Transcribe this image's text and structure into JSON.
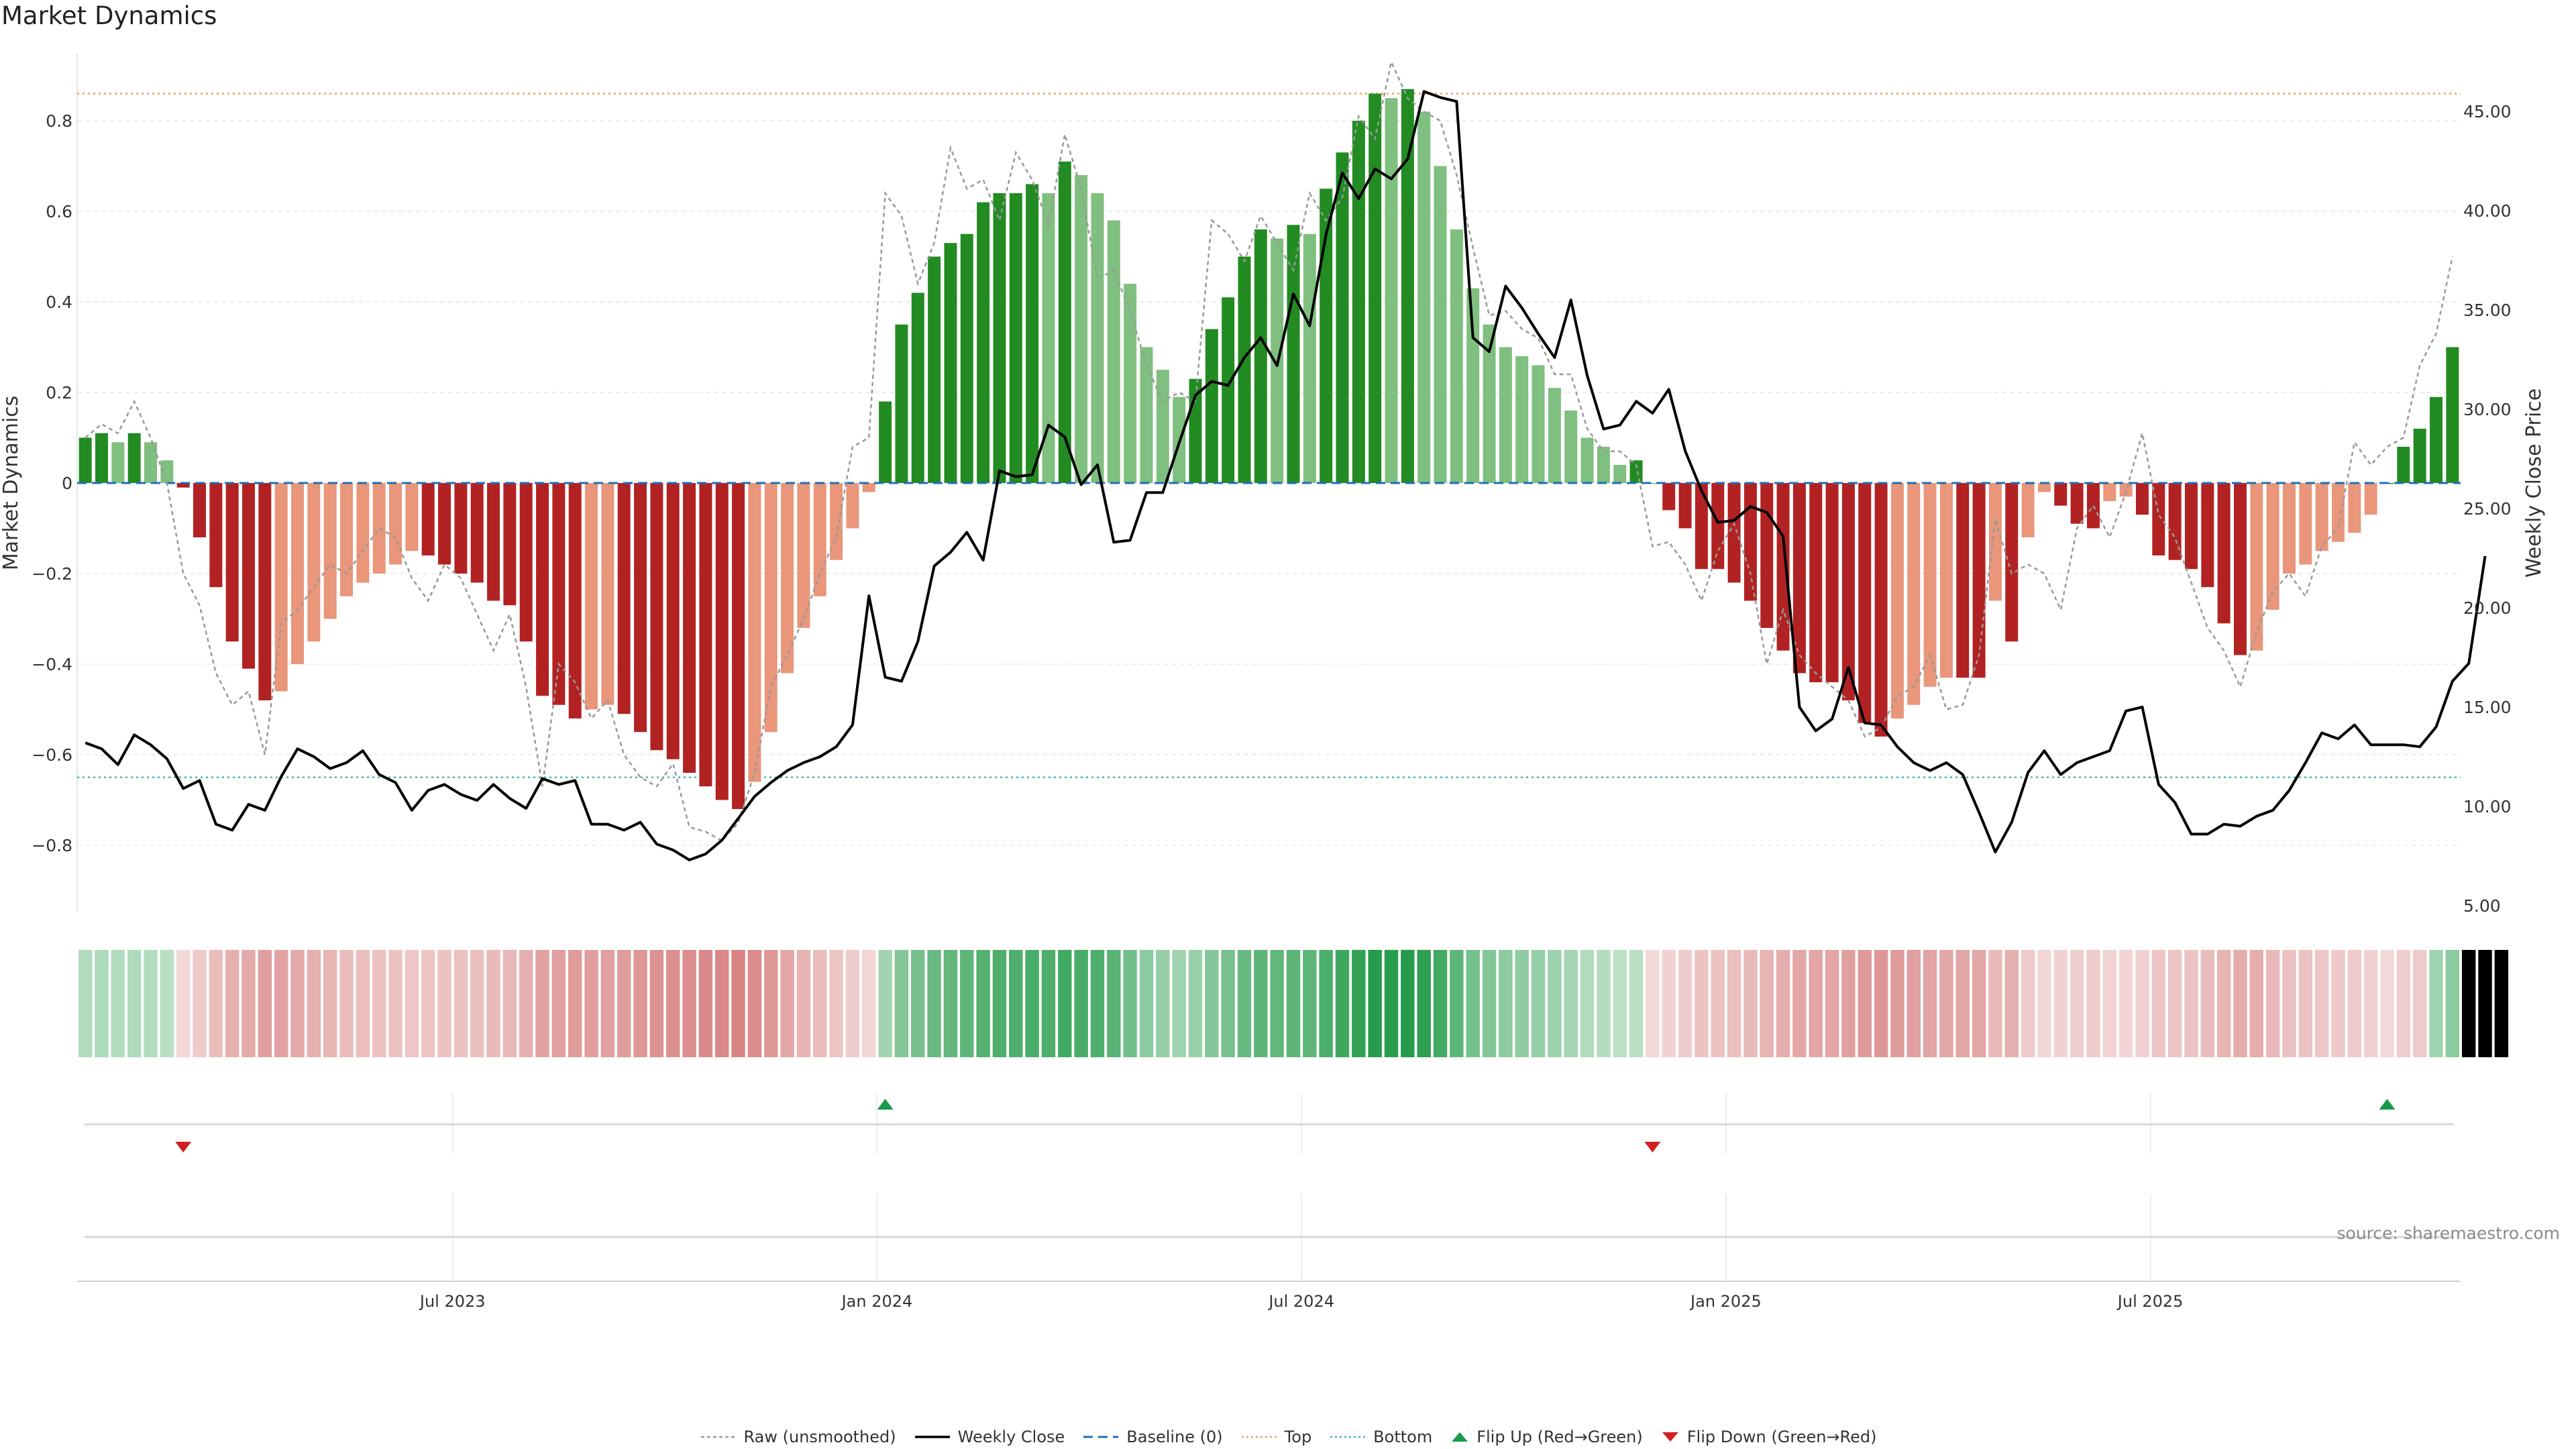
{
  "title": "Market Dynamics",
  "source": "source: sharemaestro.com",
  "chart_data": {
    "type": "bar",
    "title": "Market Dynamics",
    "ylabel": "Market Dynamics",
    "y2label": "Weekly Close Price",
    "ylim": [
      -0.95,
      0.95
    ],
    "y2lim": [
      5.0,
      47.0
    ],
    "left_ticks": [
      "0.8",
      "0.6",
      "0.4",
      "0.2",
      "0",
      "−0.2",
      "−0.4",
      "−0.6",
      "−0.8"
    ],
    "right_ticks": [
      "45.00",
      "40.00",
      "35.00",
      "30.00",
      "25.00",
      "20.00",
      "15.00",
      "10.00",
      "5.00"
    ],
    "x_ticks": [
      "Jul 2023",
      "Jan 2024",
      "Jul 2024",
      "Jan 2025",
      "Jul 2025"
    ],
    "top_level": 0.86,
    "bottom_level": -0.65,
    "colors": {
      "green_strong": "#228b22",
      "green_light": "#7fbf7f",
      "red_strong": "#b22222",
      "red_light": "#e9967a",
      "top_line": "#f0a05a",
      "bottom_line": "#40b0d0",
      "baseline": "#1f6fb4",
      "raw_line": "#999999",
      "close_line": "#000000"
    },
    "dynamics": [
      0.1,
      0.11,
      0.09,
      0.11,
      0.09,
      0.05,
      -0.01,
      -0.12,
      -0.23,
      -0.35,
      -0.41,
      -0.48,
      -0.46,
      -0.4,
      -0.35,
      -0.3,
      -0.25,
      -0.22,
      -0.2,
      -0.18,
      -0.15,
      -0.16,
      -0.18,
      -0.2,
      -0.22,
      -0.26,
      -0.27,
      -0.35,
      -0.47,
      -0.49,
      -0.52,
      -0.5,
      -0.49,
      -0.51,
      -0.55,
      -0.59,
      -0.61,
      -0.64,
      -0.67,
      -0.7,
      -0.72,
      -0.66,
      -0.55,
      -0.42,
      -0.32,
      -0.25,
      -0.17,
      -0.1,
      -0.02,
      0.18,
      0.35,
      0.42,
      0.5,
      0.53,
      0.55,
      0.62,
      0.64,
      0.64,
      0.66,
      0.64,
      0.71,
      0.68,
      0.64,
      0.58,
      0.44,
      0.3,
      0.25,
      0.19,
      0.23,
      0.34,
      0.41,
      0.5,
      0.56,
      0.54,
      0.57,
      0.55,
      0.65,
      0.73,
      0.8,
      0.86,
      0.85,
      0.87,
      0.82,
      0.7,
      0.56,
      0.43,
      0.35,
      0.3,
      0.28,
      0.26,
      0.21,
      0.16,
      0.1,
      0.08,
      0.04,
      0.05,
      0.0,
      -0.06,
      -0.1,
      -0.19,
      -0.19,
      -0.22,
      -0.26,
      -0.32,
      -0.37,
      -0.42,
      -0.44,
      -0.44,
      -0.48,
      -0.53,
      -0.56,
      -0.52,
      -0.49,
      -0.45,
      -0.43,
      -0.43,
      -0.43,
      -0.26,
      -0.35,
      -0.12,
      -0.02,
      -0.05,
      -0.09,
      -0.1,
      -0.04,
      -0.03,
      -0.07,
      -0.16,
      -0.17,
      -0.19,
      -0.23,
      -0.31,
      -0.38,
      -0.37,
      -0.28,
      -0.2,
      -0.18,
      -0.15,
      -0.13,
      -0.11,
      -0.07,
      0.0,
      0.08,
      0.12,
      0.19,
      0.3
    ],
    "raw": [
      0.1,
      0.13,
      0.11,
      0.18,
      0.1,
      0.0,
      -0.2,
      -0.27,
      -0.42,
      -0.49,
      -0.46,
      -0.6,
      -0.31,
      -0.28,
      -0.23,
      -0.18,
      -0.2,
      -0.15,
      -0.1,
      -0.12,
      -0.21,
      -0.26,
      -0.18,
      -0.21,
      -0.29,
      -0.37,
      -0.29,
      -0.45,
      -0.67,
      -0.4,
      -0.44,
      -0.52,
      -0.48,
      -0.6,
      -0.65,
      -0.67,
      -0.62,
      -0.76,
      -0.77,
      -0.79,
      -0.75,
      -0.64,
      -0.45,
      -0.38,
      -0.3,
      -0.2,
      -0.12,
      0.08,
      0.1,
      0.64,
      0.59,
      0.44,
      0.53,
      0.74,
      0.65,
      0.67,
      0.58,
      0.73,
      0.67,
      0.57,
      0.77,
      0.65,
      0.45,
      0.47,
      0.38,
      0.26,
      0.18,
      0.2,
      0.18,
      0.58,
      0.55,
      0.49,
      0.59,
      0.53,
      0.47,
      0.64,
      0.58,
      0.63,
      0.81,
      0.76,
      0.93,
      0.85,
      0.82,
      0.8,
      0.68,
      0.52,
      0.37,
      0.38,
      0.34,
      0.32,
      0.24,
      0.24,
      0.12,
      0.07,
      0.07,
      0.04,
      -0.14,
      -0.13,
      -0.18,
      -0.26,
      -0.15,
      -0.09,
      -0.2,
      -0.4,
      -0.28,
      -0.38,
      -0.42,
      -0.45,
      -0.48,
      -0.56,
      -0.54,
      -0.47,
      -0.45,
      -0.38,
      -0.5,
      -0.49,
      -0.38,
      -0.08,
      -0.2,
      -0.18,
      -0.2,
      -0.28,
      -0.1,
      -0.05,
      -0.12,
      -0.02,
      0.11,
      -0.07,
      -0.12,
      -0.22,
      -0.32,
      -0.37,
      -0.45,
      -0.33,
      -0.24,
      -0.2,
      -0.25,
      -0.14,
      -0.1,
      0.09,
      0.04,
      0.08,
      0.1,
      0.26,
      0.33,
      0.5
    ],
    "close": [
      13.2,
      12.9,
      12.1,
      13.6,
      13.1,
      12.4,
      10.9,
      11.3,
      9.1,
      8.8,
      10.1,
      9.8,
      11.5,
      12.9,
      12.5,
      11.9,
      12.2,
      12.8,
      11.6,
      11.2,
      9.8,
      10.8,
      11.1,
      10.6,
      10.3,
      11.1,
      10.4,
      9.9,
      11.4,
      11.1,
      11.3,
      9.1,
      9.1,
      8.8,
      9.2,
      8.1,
      7.8,
      7.3,
      7.6,
      8.3,
      9.4,
      10.5,
      11.2,
      11.8,
      12.2,
      12.5,
      13.0,
      14.1,
      20.6,
      16.5,
      16.3,
      18.3,
      22.1,
      22.8,
      23.8,
      22.4,
      26.9,
      26.6,
      26.7,
      29.2,
      28.6,
      26.2,
      27.2,
      23.3,
      23.4,
      25.8,
      25.8,
      28.3,
      30.7,
      31.4,
      31.2,
      32.6,
      33.6,
      32.2,
      35.8,
      34.2,
      38.8,
      41.9,
      40.6,
      42.1,
      41.6,
      42.6,
      46.0,
      45.7,
      45.5,
      33.6,
      32.9,
      36.2,
      35.1,
      33.8,
      32.6,
      35.5,
      31.7,
      29.0,
      29.2,
      30.4,
      29.8,
      31.0,
      27.9,
      25.9,
      24.3,
      24.4,
      25.1,
      24.8,
      23.6,
      15.0,
      13.8,
      14.4,
      17.0,
      14.2,
      14.1,
      13.0,
      12.2,
      11.8,
      12.2,
      11.6,
      9.7,
      7.7,
      9.2,
      11.7,
      12.8,
      11.6,
      12.2,
      12.5,
      12.8,
      14.8,
      15.0,
      11.1,
      10.2,
      8.6,
      8.6,
      9.1,
      9.0,
      9.5,
      9.8,
      10.8,
      12.2,
      13.7,
      13.4,
      14.1,
      13.1,
      13.1,
      13.1,
      13.0,
      14.0,
      16.3,
      17.2,
      22.6
    ],
    "regime": [
      "g",
      "g",
      "g",
      "g",
      "g",
      "g",
      "r",
      "r",
      "r",
      "r",
      "r",
      "r",
      "r",
      "r",
      "r",
      "r",
      "r",
      "r",
      "r",
      "r",
      "r",
      "r",
      "r",
      "r",
      "r",
      "r",
      "r",
      "r",
      "r",
      "r",
      "r",
      "r",
      "r",
      "r",
      "r",
      "r",
      "r",
      "r",
      "r",
      "r",
      "r",
      "r",
      "r",
      "r",
      "r",
      "r",
      "r",
      "r",
      "r",
      "g",
      "g",
      "g",
      "g",
      "g",
      "g",
      "g",
      "g",
      "g",
      "g",
      "g",
      "g",
      "g",
      "g",
      "g",
      "g",
      "g",
      "g",
      "g",
      "g",
      "g",
      "g",
      "g",
      "g",
      "g",
      "g",
      "g",
      "g",
      "g",
      "g",
      "g",
      "g",
      "g",
      "g",
      "g",
      "g",
      "g",
      "g",
      "g",
      "g",
      "g",
      "g",
      "g",
      "g",
      "g",
      "g",
      "g",
      "r",
      "r",
      "r",
      "r",
      "r",
      "r",
      "r",
      "r",
      "r",
      "r",
      "r",
      "r",
      "r",
      "r",
      "r",
      "r",
      "r",
      "r",
      "r",
      "r",
      "r",
      "r",
      "r",
      "r",
      "r",
      "r",
      "r",
      "r",
      "r",
      "r",
      "r",
      "r",
      "r",
      "r",
      "r",
      "r",
      "r",
      "r",
      "r",
      "r",
      "r",
      "r",
      "r",
      "r",
      "r",
      "r",
      "r",
      "r",
      "g",
      "g",
      "g",
      "g",
      "g"
    ],
    "flips_up": [
      49,
      141
    ],
    "flips_down": [
      6,
      96
    ]
  },
  "legend": [
    {
      "key": "raw",
      "label": "Raw (unsmoothed)"
    },
    {
      "key": "close",
      "label": "Weekly Close"
    },
    {
      "key": "baseline",
      "label": "Baseline (0)"
    },
    {
      "key": "top",
      "label": "Top"
    },
    {
      "key": "bottom",
      "label": "Bottom"
    },
    {
      "key": "flip_up",
      "label": "Flip Up (Red→Green)"
    },
    {
      "key": "flip_down",
      "label": "Flip Down (Green→Red)"
    }
  ]
}
